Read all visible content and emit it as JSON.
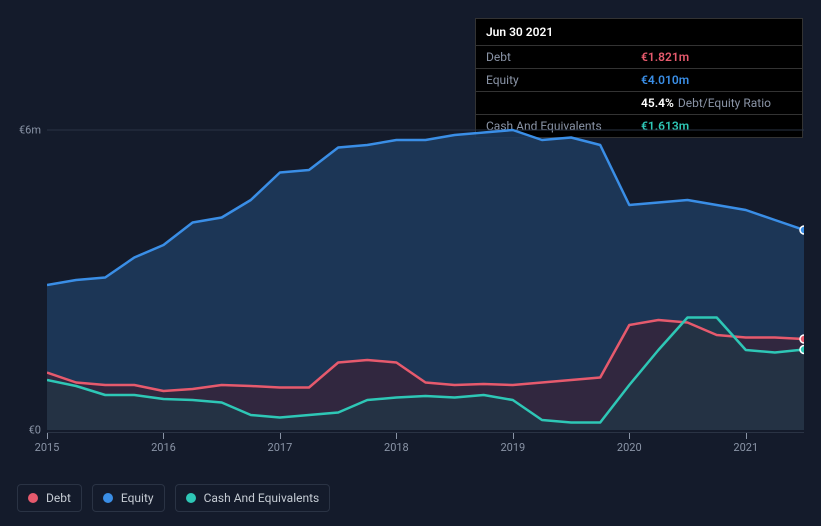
{
  "tooltip": {
    "date": "Jun 30 2021",
    "rows": [
      {
        "label": "Debt",
        "value": "€1.821m",
        "color": "#e65a6d"
      },
      {
        "label": "Equity",
        "value": "€4.010m",
        "color": "#3a8ee6"
      },
      {
        "label": "",
        "value": "45.4%",
        "suffix": "Debt/Equity Ratio",
        "color": "#ffffff"
      },
      {
        "label": "Cash And Equivalents",
        "value": "€1.613m",
        "color": "#2ec7b6"
      }
    ]
  },
  "chart": {
    "type": "area",
    "background_color": "#141b2b",
    "grid_color": "#2a3344",
    "x": {
      "min": 2015,
      "max": 2021.5,
      "ticks": [
        2015,
        2016,
        2017,
        2018,
        2019,
        2020,
        2021
      ]
    },
    "y": {
      "min": 0,
      "max": 6.2,
      "ticks": [
        {
          "v": 0,
          "label": "€0"
        },
        {
          "v": 6,
          "label": "€6m"
        }
      ]
    },
    "series": [
      {
        "name": "Equity",
        "color": "#3a8ee6",
        "fill": "#1d3b5e",
        "fill_opacity": 0.85,
        "data": [
          [
            2015,
            2.9
          ],
          [
            2015.25,
            3.0
          ],
          [
            2015.5,
            3.05
          ],
          [
            2015.75,
            3.45
          ],
          [
            2016,
            3.7
          ],
          [
            2016.25,
            4.15
          ],
          [
            2016.5,
            4.25
          ],
          [
            2016.75,
            4.6
          ],
          [
            2017,
            5.15
          ],
          [
            2017.25,
            5.2
          ],
          [
            2017.5,
            5.65
          ],
          [
            2017.75,
            5.7
          ],
          [
            2018,
            5.8
          ],
          [
            2018.25,
            5.8
          ],
          [
            2018.5,
            5.9
          ],
          [
            2018.75,
            5.95
          ],
          [
            2019,
            6.0
          ],
          [
            2019.25,
            5.8
          ],
          [
            2019.5,
            5.85
          ],
          [
            2019.75,
            5.7
          ],
          [
            2020,
            4.5
          ],
          [
            2020.25,
            4.55
          ],
          [
            2020.5,
            4.6
          ],
          [
            2020.75,
            4.5
          ],
          [
            2021,
            4.4
          ],
          [
            2021.25,
            4.2
          ],
          [
            2021.5,
            4.0
          ]
        ]
      },
      {
        "name": "Debt",
        "color": "#e65a6d",
        "fill": "#3a2136",
        "fill_opacity": 0.7,
        "data": [
          [
            2015,
            1.15
          ],
          [
            2015.25,
            0.95
          ],
          [
            2015.5,
            0.9
          ],
          [
            2015.75,
            0.9
          ],
          [
            2016,
            0.78
          ],
          [
            2016.25,
            0.82
          ],
          [
            2016.5,
            0.9
          ],
          [
            2016.75,
            0.88
          ],
          [
            2017,
            0.85
          ],
          [
            2017.25,
            0.85
          ],
          [
            2017.5,
            1.35
          ],
          [
            2017.75,
            1.4
          ],
          [
            2018,
            1.35
          ],
          [
            2018.25,
            0.95
          ],
          [
            2018.5,
            0.9
          ],
          [
            2018.75,
            0.92
          ],
          [
            2019,
            0.9
          ],
          [
            2019.25,
            0.95
          ],
          [
            2019.5,
            1.0
          ],
          [
            2019.75,
            1.05
          ],
          [
            2020,
            2.1
          ],
          [
            2020.25,
            2.2
          ],
          [
            2020.5,
            2.15
          ],
          [
            2020.75,
            1.9
          ],
          [
            2021,
            1.85
          ],
          [
            2021.25,
            1.85
          ],
          [
            2021.5,
            1.82
          ]
        ]
      },
      {
        "name": "Cash And Equivalents",
        "color": "#2ec7b6",
        "fill": "#1d3b47",
        "fill_opacity": 0.6,
        "data": [
          [
            2015,
            1.0
          ],
          [
            2015.25,
            0.88
          ],
          [
            2015.5,
            0.7
          ],
          [
            2015.75,
            0.7
          ],
          [
            2016,
            0.62
          ],
          [
            2016.25,
            0.6
          ],
          [
            2016.5,
            0.55
          ],
          [
            2016.75,
            0.3
          ],
          [
            2017,
            0.25
          ],
          [
            2017.25,
            0.3
          ],
          [
            2017.5,
            0.35
          ],
          [
            2017.75,
            0.6
          ],
          [
            2018,
            0.65
          ],
          [
            2018.25,
            0.68
          ],
          [
            2018.5,
            0.65
          ],
          [
            2018.75,
            0.7
          ],
          [
            2019,
            0.6
          ],
          [
            2019.25,
            0.2
          ],
          [
            2019.5,
            0.15
          ],
          [
            2019.75,
            0.15
          ],
          [
            2020,
            0.9
          ],
          [
            2020.25,
            1.6
          ],
          [
            2020.5,
            2.25
          ],
          [
            2020.75,
            2.25
          ],
          [
            2021,
            1.6
          ],
          [
            2021.25,
            1.55
          ],
          [
            2021.5,
            1.61
          ]
        ]
      }
    ],
    "markers": [
      {
        "series": "Equity",
        "x": 2021.5,
        "y": 4.0,
        "color": "#3a8ee6"
      },
      {
        "series": "Debt",
        "x": 2021.5,
        "y": 1.82,
        "color": "#e65a6d"
      },
      {
        "series": "Cash And Equivalents",
        "x": 2021.5,
        "y": 1.61,
        "color": "#2ec7b6"
      }
    ]
  },
  "legend": [
    {
      "label": "Debt",
      "color": "#e65a6d"
    },
    {
      "label": "Equity",
      "color": "#3a8ee6"
    },
    {
      "label": "Cash And Equivalents",
      "color": "#2ec7b6"
    }
  ]
}
